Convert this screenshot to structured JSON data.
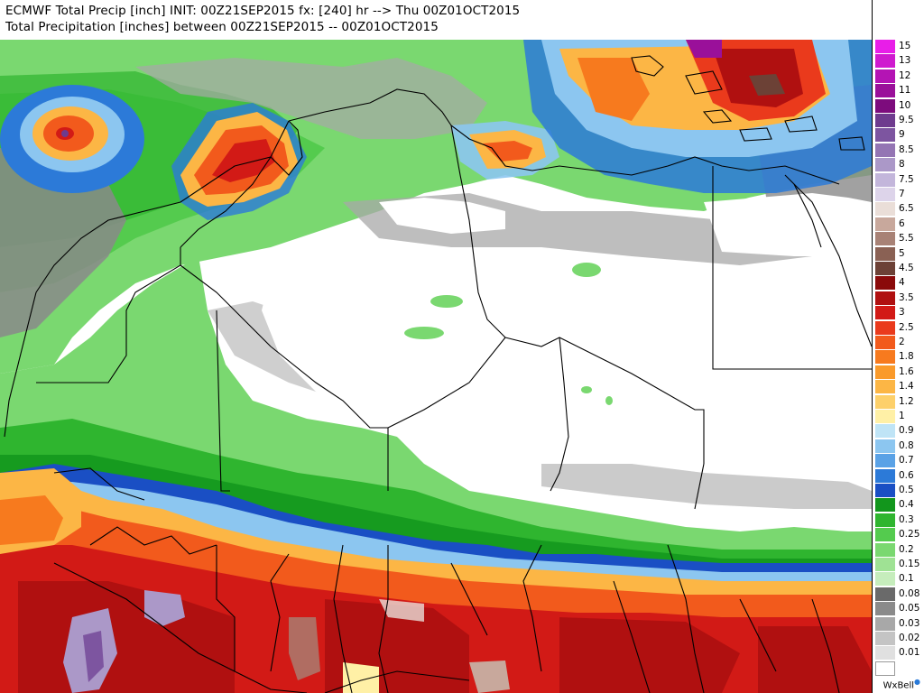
{
  "header": {
    "line1": "ECMWF Total Precip [inch] INIT: 00Z21SEP2015 fx: [240] hr --> Thu 00Z01OCT2015",
    "line2": "Total Precipitation [inches] between 00Z21SEP2015 -- 00Z01OCT2015"
  },
  "legend": [
    {
      "label": "15",
      "color": "#e81ee8"
    },
    {
      "label": "13",
      "color": "#cf1acf"
    },
    {
      "label": "12",
      "color": "#b414b4"
    },
    {
      "label": "11",
      "color": "#9a109a"
    },
    {
      "label": "10",
      "color": "#7d0c7d"
    },
    {
      "label": "9.5",
      "color": "#6e3b8e"
    },
    {
      "label": "9",
      "color": "#7d55a0"
    },
    {
      "label": "8.5",
      "color": "#9475b4"
    },
    {
      "label": "8",
      "color": "#ab98c8"
    },
    {
      "label": "7.5",
      "color": "#c3b6db"
    },
    {
      "label": "7",
      "color": "#ddd4ea"
    },
    {
      "label": "6.5",
      "color": "#eaded8"
    },
    {
      "label": "6",
      "color": "#c8a89c"
    },
    {
      "label": "5.5",
      "color": "#a88276"
    },
    {
      "label": "5",
      "color": "#8a6154"
    },
    {
      "label": "4.5",
      "color": "#6c4136"
    },
    {
      "label": "4",
      "color": "#8a0a0a"
    },
    {
      "label": "3.5",
      "color": "#b01010"
    },
    {
      "label": "3",
      "color": "#d21a16"
    },
    {
      "label": "2.5",
      "color": "#ea3a1c"
    },
    {
      "label": "2",
      "color": "#f25a1c"
    },
    {
      "label": "1.8",
      "color": "#f77a1e"
    },
    {
      "label": "1.6",
      "color": "#fa9a2a"
    },
    {
      "label": "1.4",
      "color": "#fcb645"
    },
    {
      "label": "1.2",
      "color": "#fdd06a"
    },
    {
      "label": "1",
      "color": "#fff0a6"
    },
    {
      "label": "0.9",
      "color": "#bfe4f6"
    },
    {
      "label": "0.8",
      "color": "#8cc6f0"
    },
    {
      "label": "0.7",
      "color": "#5aa2e6"
    },
    {
      "label": "0.6",
      "color": "#2c7ad8"
    },
    {
      "label": "0.5",
      "color": "#1a4fc4"
    },
    {
      "label": "0.4",
      "color": "#12961c"
    },
    {
      "label": "0.3",
      "color": "#2fb52f"
    },
    {
      "label": "0.25",
      "color": "#54cb4e"
    },
    {
      "label": "0.2",
      "color": "#7ad870"
    },
    {
      "label": "0.15",
      "color": "#9fe294"
    },
    {
      "label": "0.1",
      "color": "#c6edbc"
    },
    {
      "label": "0.08",
      "color": "#6a6a6a"
    },
    {
      "label": "0.05",
      "color": "#8a8a8a"
    },
    {
      "label": "0.03",
      "color": "#a8a8a8"
    },
    {
      "label": "0.02",
      "color": "#c4c4c4"
    },
    {
      "label": "0.01",
      "color": "#e0e0e0"
    },
    {
      "label": "",
      "color": "#ffffff"
    }
  ],
  "credit": "WxBell"
}
